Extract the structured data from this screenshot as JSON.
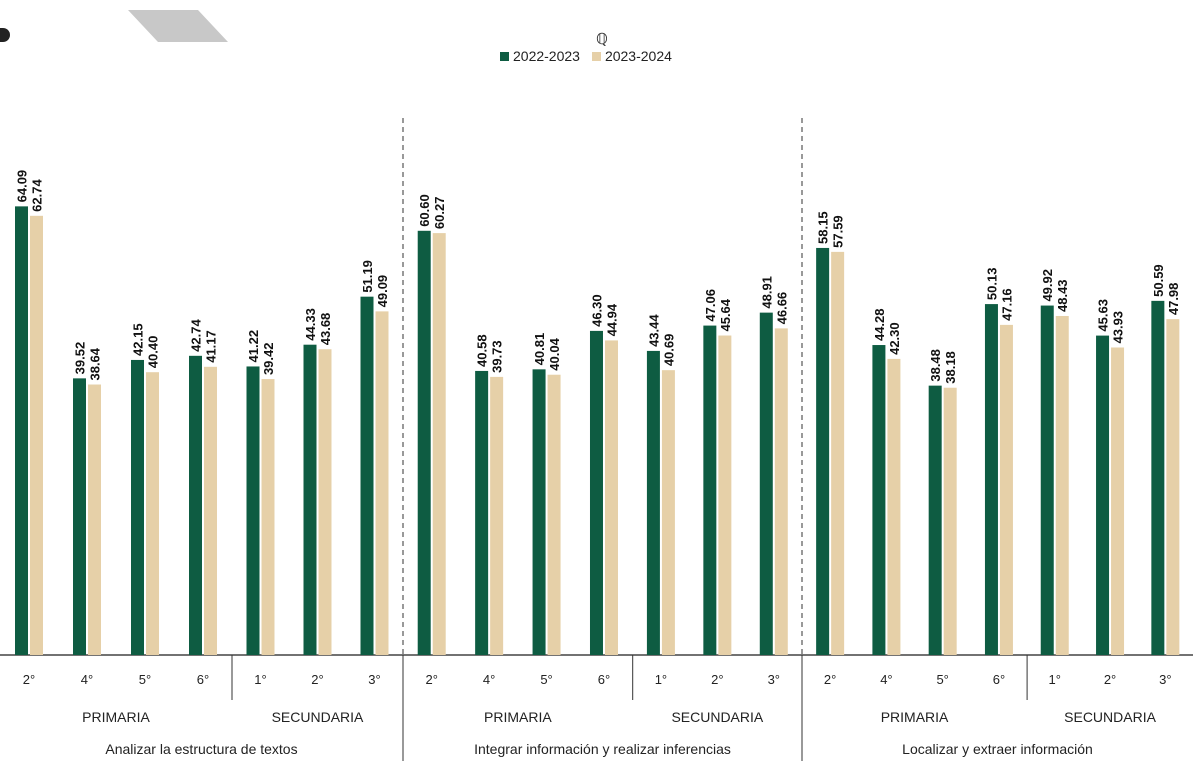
{
  "chart_data": {
    "type": "bar",
    "series": [
      {
        "name": "2022-2023",
        "color": "#0e5c42"
      },
      {
        "name": "2023-2024",
        "color": "#e6d0a8"
      }
    ],
    "legend_marker": "ℚ",
    "legend_position": "top-center",
    "grid": false,
    "groups": [
      {
        "title": "Analizar la estructura de textos",
        "levels": [
          {
            "label": "PRIMARIA",
            "grades": [
              "2°",
              "4°",
              "5°",
              "6°"
            ],
            "values_2022_2023": [
              64.09,
              39.52,
              42.15,
              42.74
            ],
            "values_2023_2024": [
              62.74,
              38.64,
              40.4,
              41.17
            ]
          },
          {
            "label": "SECUNDARIA",
            "grades": [
              "1°",
              "2°",
              "3°"
            ],
            "values_2022_2023": [
              41.22,
              44.33,
              51.19
            ],
            "values_2023_2024": [
              39.42,
              43.68,
              49.09
            ]
          }
        ]
      },
      {
        "title": "Integrar información y realizar inferencias",
        "levels": [
          {
            "label": "PRIMARIA",
            "grades": [
              "2°",
              "4°",
              "5°",
              "6°"
            ],
            "values_2022_2023": [
              60.6,
              40.58,
              40.81,
              46.3
            ],
            "values_2023_2024": [
              60.27,
              39.73,
              40.04,
              44.94
            ]
          },
          {
            "label": "SECUNDARIA",
            "grades": [
              "1°",
              "2°",
              "3°"
            ],
            "values_2022_2023": [
              43.44,
              47.06,
              48.91
            ],
            "values_2023_2024": [
              40.69,
              45.64,
              46.66
            ]
          }
        ]
      },
      {
        "title": "Localizar y extraer información",
        "levels": [
          {
            "label": "PRIMARIA",
            "grades": [
              "2°",
              "4°",
              "5°",
              "6°"
            ],
            "values_2022_2023": [
              58.15,
              44.28,
              38.48,
              50.13
            ],
            "values_2023_2024": [
              57.59,
              42.3,
              38.18,
              47.16
            ]
          },
          {
            "label": "SECUNDARIA",
            "grades": [
              "1°",
              "2°",
              "3°"
            ],
            "values_2022_2023": [
              49.92,
              45.63,
              50.59
            ],
            "values_2023_2024": [
              48.43,
              43.93,
              47.98
            ]
          }
        ]
      }
    ],
    "ylim": [
      0,
      70
    ]
  }
}
